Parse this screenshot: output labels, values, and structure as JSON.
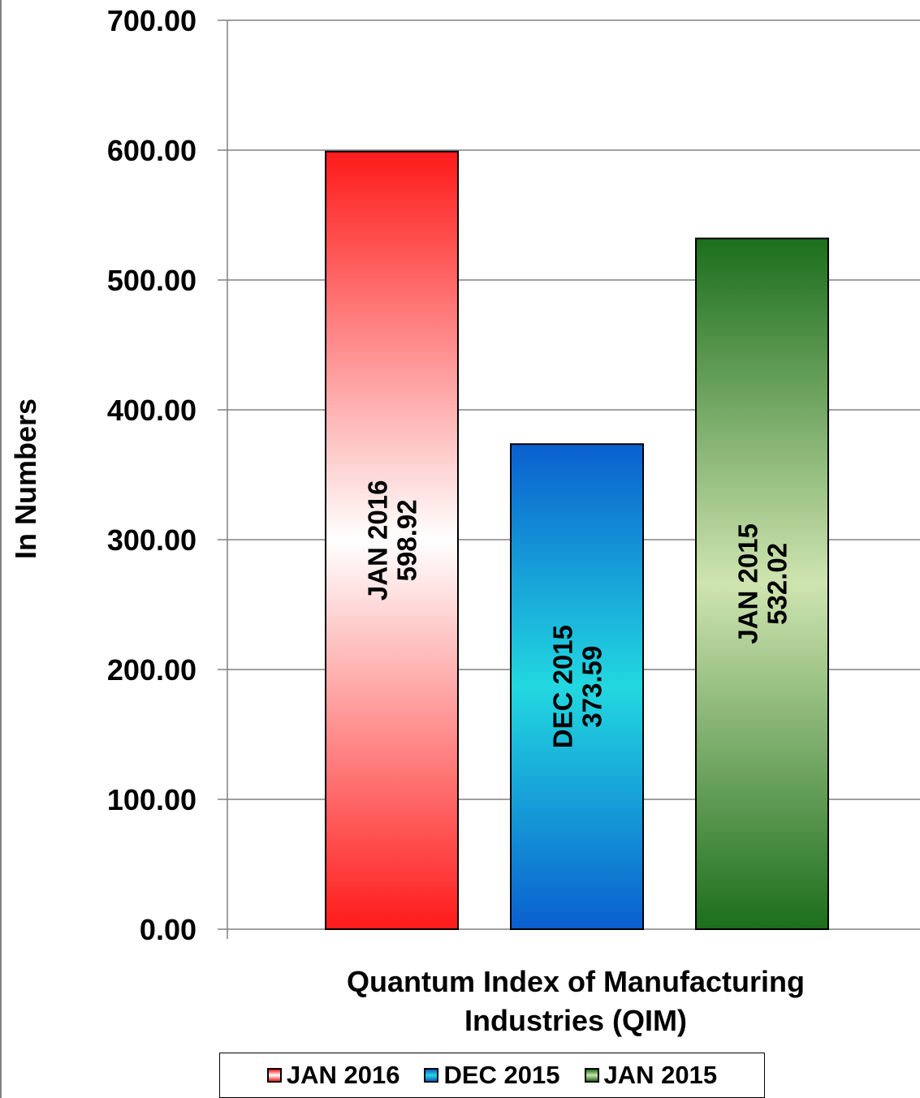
{
  "chart_data": {
    "type": "bar",
    "title": "",
    "xlabel": "Quantum Index of Manufacturing Industries (QIM)",
    "ylabel": "In Numbers",
    "ylim": [
      0,
      700
    ],
    "yticks": [
      "0.00",
      "100.00",
      "200.00",
      "300.00",
      "400.00",
      "500.00",
      "600.00",
      "700.00"
    ],
    "grid": true,
    "legend_position": "bottom",
    "series": [
      {
        "name": "JAN 2016",
        "value": 598.92,
        "label": "JAN 2016",
        "value_label": "598.92",
        "color": "#ff2020"
      },
      {
        "name": "DEC 2015",
        "value": 373.59,
        "label": "DEC 2015",
        "value_label": "373.59",
        "color": "#0a6fd6"
      },
      {
        "name": "JAN 2015",
        "value": 532.02,
        "label": "JAN 2015",
        "value_label": "532.02",
        "color": "#1f7a1f"
      }
    ]
  }
}
